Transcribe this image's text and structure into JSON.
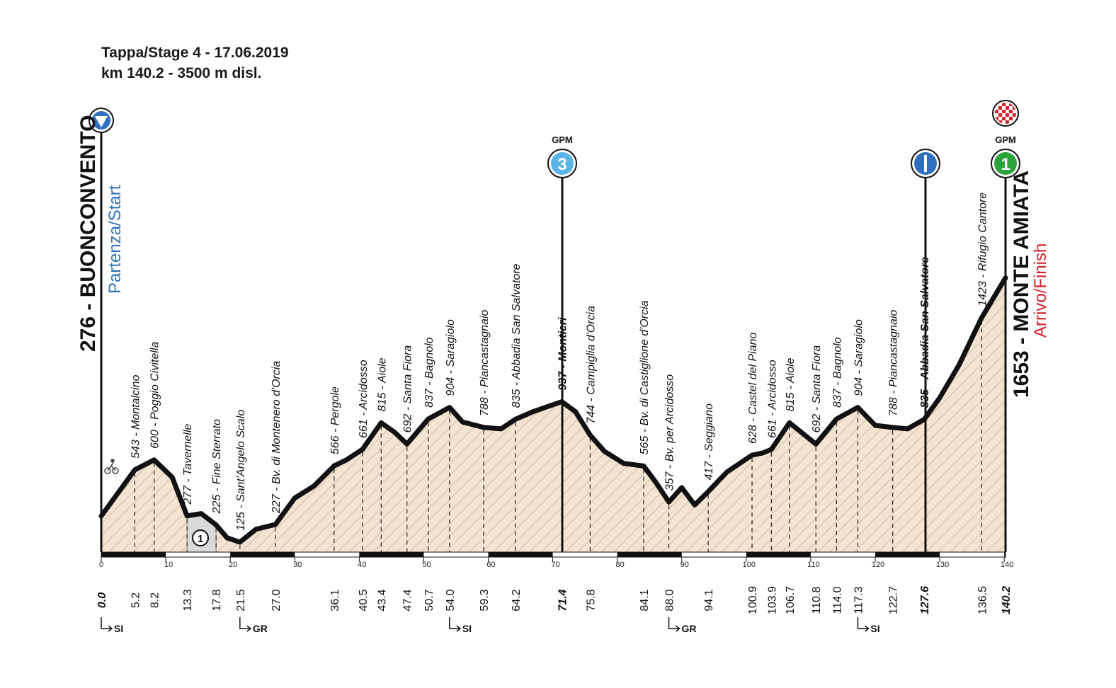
{
  "header": {
    "line1": "Tappa/Stage 4 - 17.06.2019",
    "line2": "km 140.2 - 3500 m disl."
  },
  "colors": {
    "profile_fill": "#f3e3d0",
    "hatch": "#8a7766",
    "line": "#111111",
    "start_label": "#2f73b8",
    "finish_label": "#d2232a",
    "gpm3": "#5ab4e5",
    "gpm1": "#2aa33b",
    "sprint": "#2f6fbf",
    "gravel": "#d9d9d9"
  },
  "start": {
    "name": "276 - BUONCONVENTO",
    "sub": "Partenza/Start",
    "icon": "start-triangle-icon"
  },
  "finish": {
    "name": "1653 - MONTE AMIATA",
    "sub": "Arrivo/Finish",
    "icon": "checkered-flag-icon",
    "gpm_label": "GPM",
    "gpm_cat": "1"
  },
  "gpm3": {
    "label": "GPM",
    "cat": "3",
    "km": 71.4
  },
  "sprint": {
    "km": 127.6
  },
  "gravel": {
    "sector": "1",
    "from_km": 13.3,
    "to_km": 17.8
  },
  "chart_data": {
    "type": "area",
    "x_unit": "km",
    "x_range": [
      0,
      140.2
    ],
    "x_ticks": [
      0,
      10,
      20,
      30,
      40,
      50,
      60,
      70,
      80,
      90,
      100,
      110,
      120,
      130,
      140
    ],
    "profile": [
      [
        0,
        276
      ],
      [
        5.2,
        543
      ],
      [
        8.2,
        600
      ],
      [
        11,
        500
      ],
      [
        13.3,
        277
      ],
      [
        15.5,
        290
      ],
      [
        17.8,
        225
      ],
      [
        19.5,
        150
      ],
      [
        21.5,
        125
      ],
      [
        24,
        200
      ],
      [
        27.0,
        227
      ],
      [
        30,
        380
      ],
      [
        33,
        450
      ],
      [
        36.1,
        566
      ],
      [
        38,
        600
      ],
      [
        40.5,
        661
      ],
      [
        43.4,
        815
      ],
      [
        45.5,
        760
      ],
      [
        47.4,
        692
      ],
      [
        50.7,
        837
      ],
      [
        54.0,
        904
      ],
      [
        56,
        820
      ],
      [
        59.3,
        788
      ],
      [
        62,
        780
      ],
      [
        64.2,
        835
      ],
      [
        67,
        880
      ],
      [
        71.4,
        937
      ],
      [
        73.5,
        880
      ],
      [
        75.8,
        744
      ],
      [
        78,
        650
      ],
      [
        81,
        580
      ],
      [
        84.1,
        565
      ],
      [
        86,
        470
      ],
      [
        88.0,
        357
      ],
      [
        90,
        440
      ],
      [
        92,
        340
      ],
      [
        94.1,
        417
      ],
      [
        97,
        530
      ],
      [
        100.9,
        628
      ],
      [
        102.5,
        640
      ],
      [
        103.9,
        661
      ],
      [
        106.7,
        815
      ],
      [
        110.8,
        692
      ],
      [
        114.0,
        837
      ],
      [
        117.3,
        904
      ],
      [
        120,
        800
      ],
      [
        122.7,
        788
      ],
      [
        125,
        780
      ],
      [
        127.6,
        835
      ],
      [
        130,
        960
      ],
      [
        133,
        1150
      ],
      [
        136.5,
        1423
      ],
      [
        140.2,
        1653
      ]
    ],
    "points": [
      {
        "km": "0.0",
        "alt": "",
        "name": "",
        "bold": true
      },
      {
        "km": "5.2",
        "alt": "543",
        "name": "Montalcino"
      },
      {
        "km": "8.2",
        "alt": "600",
        "name": "Poggio Civitella"
      },
      {
        "km": "13.3",
        "alt": "277",
        "name": "Tavernelle"
      },
      {
        "km": "17.8",
        "alt": "225",
        "name": "Fine Sterrato"
      },
      {
        "km": "21.5",
        "alt": "125",
        "name": "Sant'Angelo Scalo"
      },
      {
        "km": "27.0",
        "alt": "227",
        "name": "Bv. di Montenero d'Orcia"
      },
      {
        "km": "36.1",
        "alt": "566",
        "name": "Pergole"
      },
      {
        "km": "40.5",
        "alt": "661",
        "name": "Arcidosso"
      },
      {
        "km": "43.4",
        "alt": "815",
        "name": "Aiole"
      },
      {
        "km": "47.4",
        "alt": "692",
        "name": "Santa Fiora"
      },
      {
        "km": "50.7",
        "alt": "837",
        "name": "Bagnolo"
      },
      {
        "km": "54.0",
        "alt": "904",
        "name": "Saragiolo"
      },
      {
        "km": "59.3",
        "alt": "788",
        "name": "Piancastagnaio"
      },
      {
        "km": "64.2",
        "alt": "835",
        "name": "Abbadia San Salvatore"
      },
      {
        "km": "71.4",
        "alt": "937",
        "name": "Montieri",
        "bold": true
      },
      {
        "km": "75.8",
        "alt": "744",
        "name": "Campiglia d'Orcia"
      },
      {
        "km": "84.1",
        "alt": "565",
        "name": "Bv. di Castiglione d'Orcia"
      },
      {
        "km": "88.0",
        "alt": "357",
        "name": "Bv. per Arcidosso"
      },
      {
        "km": "94.1",
        "alt": "417",
        "name": "Seggiano"
      },
      {
        "km": "100.9",
        "alt": "628",
        "name": "Castel del Piano"
      },
      {
        "km": "103.9",
        "alt": "661",
        "name": "Arcidosso"
      },
      {
        "km": "106.7",
        "alt": "815",
        "name": "Aiole"
      },
      {
        "km": "110.8",
        "alt": "692",
        "name": "Santa Fiora"
      },
      {
        "km": "114.0",
        "alt": "837",
        "name": "Bagnolo"
      },
      {
        "km": "117.3",
        "alt": "904",
        "name": "Saragiolo"
      },
      {
        "km": "122.7",
        "alt": "788",
        "name": "Piancastagnaio"
      },
      {
        "km": "127.6",
        "alt": "835",
        "name": "Abbadia San Salvatore",
        "bold": true
      },
      {
        "km": "136.5",
        "alt": "1423",
        "name": "Rifugio Cantore"
      },
      {
        "km": "140.2",
        "alt": "",
        "name": "",
        "bold": true
      }
    ],
    "provinces": [
      {
        "km": 0,
        "code": "SI"
      },
      {
        "km": 21.5,
        "code": "GR"
      },
      {
        "km": 54.0,
        "code": "SI"
      },
      {
        "km": 88.0,
        "code": "GR"
      },
      {
        "km": 117.3,
        "code": "SI"
      }
    ]
  }
}
